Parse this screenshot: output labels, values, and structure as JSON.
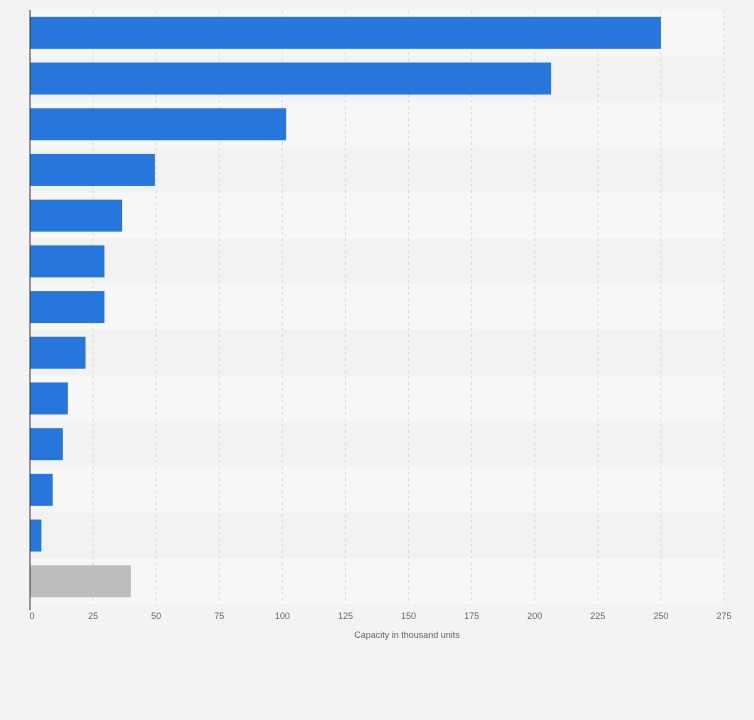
{
  "chart_data": {
    "type": "bar",
    "orientation": "horizontal",
    "categories": [
      "",
      "",
      "",
      "",
      "",
      "",
      "",
      "",
      "",
      "",
      "",
      "",
      ""
    ],
    "values": [
      250,
      206.5,
      101.5,
      49.5,
      36.5,
      29.5,
      29.5,
      22,
      15,
      13,
      9,
      4.5,
      40
    ],
    "colors": [
      "#2776dd",
      "#2776dd",
      "#2776dd",
      "#2776dd",
      "#2776dd",
      "#2776dd",
      "#2776dd",
      "#2776dd",
      "#2776dd",
      "#2776dd",
      "#2776dd",
      "#2776dd",
      "#bdbdbd"
    ],
    "xticks": [
      0,
      25,
      50,
      75,
      100,
      125,
      150,
      175,
      200,
      225,
      250,
      275
    ],
    "xlim": [
      0,
      275
    ],
    "xlabel": "Capacity in thousand units",
    "ylabel": "",
    "title": "",
    "grid": true,
    "legend": "none"
  },
  "style": {
    "background": "#f3f3f3",
    "band_light": "#f7f7f7",
    "band_dark": "#f2f2f2",
    "grid_color": "#d9d9d9",
    "axis_color": "#333333"
  }
}
